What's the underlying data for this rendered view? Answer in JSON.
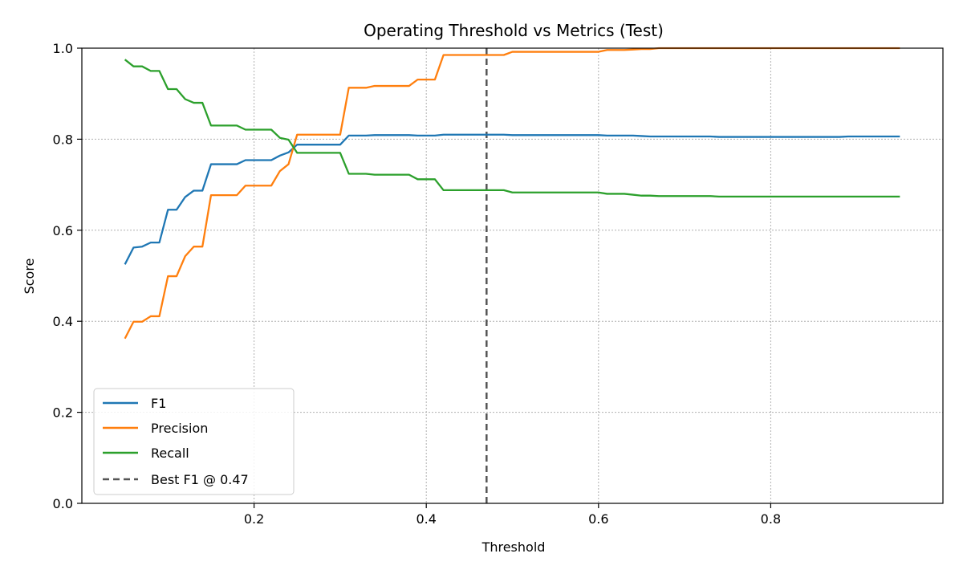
{
  "chart_data": {
    "type": "line",
    "title": "Operating Threshold vs Metrics (Test)",
    "xlabel": "Threshold",
    "ylabel": "Score",
    "xlim": [
      0.0,
      1.0
    ],
    "ylim": [
      0.0,
      1.0
    ],
    "xticks": [
      0.2,
      0.4,
      0.6,
      0.8
    ],
    "xtick_labels": [
      "0.2",
      "0.4",
      "0.6",
      "0.8"
    ],
    "yticks": [
      0.0,
      0.2,
      0.4,
      0.6,
      0.8,
      1.0
    ],
    "ytick_labels": [
      "0.0",
      "0.2",
      "0.4",
      "0.6",
      "0.8",
      "1.0"
    ],
    "grid": true,
    "legend_position": "lower-left",
    "x": [
      0.05,
      0.06,
      0.07,
      0.08,
      0.09,
      0.1,
      0.11,
      0.12,
      0.13,
      0.14,
      0.15,
      0.16,
      0.17,
      0.18,
      0.19,
      0.2,
      0.21,
      0.22,
      0.23,
      0.24,
      0.25,
      0.26,
      0.27,
      0.28,
      0.29,
      0.3,
      0.31,
      0.32,
      0.33,
      0.34,
      0.35,
      0.36,
      0.37,
      0.38,
      0.39,
      0.4,
      0.41,
      0.42,
      0.43,
      0.44,
      0.45,
      0.46,
      0.47,
      0.48,
      0.49,
      0.5,
      0.51,
      0.52,
      0.53,
      0.54,
      0.55,
      0.56,
      0.57,
      0.58,
      0.59,
      0.6,
      0.61,
      0.62,
      0.63,
      0.64,
      0.65,
      0.66,
      0.67,
      0.68,
      0.69,
      0.7,
      0.71,
      0.72,
      0.73,
      0.74,
      0.75,
      0.76,
      0.77,
      0.78,
      0.79,
      0.8,
      0.81,
      0.82,
      0.83,
      0.84,
      0.85,
      0.86,
      0.87,
      0.88,
      0.89,
      0.9,
      0.91,
      0.92,
      0.93,
      0.94,
      0.95
    ],
    "series": [
      {
        "name": "F1",
        "color": "#1f77b4",
        "style": "solid",
        "values": [
          0.525,
          0.562,
          0.564,
          0.573,
          0.573,
          0.645,
          0.645,
          0.673,
          0.687,
          0.687,
          0.745,
          0.745,
          0.745,
          0.745,
          0.754,
          0.754,
          0.754,
          0.754,
          0.764,
          0.771,
          0.788,
          0.788,
          0.788,
          0.788,
          0.788,
          0.788,
          0.808,
          0.808,
          0.808,
          0.809,
          0.809,
          0.809,
          0.809,
          0.809,
          0.808,
          0.808,
          0.808,
          0.81,
          0.81,
          0.81,
          0.81,
          0.81,
          0.81,
          0.81,
          0.81,
          0.809,
          0.809,
          0.809,
          0.809,
          0.809,
          0.809,
          0.809,
          0.809,
          0.809,
          0.809,
          0.809,
          0.808,
          0.808,
          0.808,
          0.808,
          0.807,
          0.806,
          0.806,
          0.806,
          0.806,
          0.806,
          0.806,
          0.806,
          0.806,
          0.805,
          0.805,
          0.805,
          0.805,
          0.805,
          0.805,
          0.805,
          0.805,
          0.805,
          0.805,
          0.805,
          0.805,
          0.805,
          0.805,
          0.805,
          0.806,
          0.806,
          0.806,
          0.806,
          0.806,
          0.806,
          0.806
        ]
      },
      {
        "name": "Precision",
        "color": "#ff7f0e",
        "style": "solid",
        "values": [
          0.362,
          0.399,
          0.399,
          0.411,
          0.411,
          0.499,
          0.499,
          0.543,
          0.564,
          0.564,
          0.677,
          0.677,
          0.677,
          0.677,
          0.698,
          0.698,
          0.698,
          0.698,
          0.73,
          0.745,
          0.81,
          0.81,
          0.81,
          0.81,
          0.81,
          0.81,
          0.913,
          0.913,
          0.913,
          0.917,
          0.917,
          0.917,
          0.917,
          0.917,
          0.931,
          0.931,
          0.931,
          0.985,
          0.985,
          0.985,
          0.985,
          0.985,
          0.985,
          0.985,
          0.985,
          0.992,
          0.992,
          0.992,
          0.992,
          0.992,
          0.992,
          0.992,
          0.992,
          0.992,
          0.992,
          0.992,
          0.996,
          0.996,
          0.996,
          0.997,
          0.998,
          0.998,
          1.0,
          1.0,
          1.0,
          1.0,
          1.0,
          1.0,
          1.0,
          1.0,
          1.0,
          1.0,
          1.0,
          1.0,
          1.0,
          1.0,
          1.0,
          1.0,
          1.0,
          1.0,
          1.0,
          1.0,
          1.0,
          1.0,
          1.0,
          1.0,
          1.0,
          1.0,
          1.0,
          1.0,
          1.0
        ]
      },
      {
        "name": "Recall",
        "color": "#2ca02c",
        "style": "solid",
        "values": [
          0.975,
          0.96,
          0.96,
          0.95,
          0.95,
          0.91,
          0.91,
          0.888,
          0.88,
          0.88,
          0.83,
          0.83,
          0.83,
          0.83,
          0.821,
          0.821,
          0.821,
          0.821,
          0.803,
          0.799,
          0.77,
          0.77,
          0.77,
          0.77,
          0.77,
          0.77,
          0.724,
          0.724,
          0.724,
          0.722,
          0.722,
          0.722,
          0.722,
          0.722,
          0.712,
          0.712,
          0.712,
          0.688,
          0.688,
          0.688,
          0.688,
          0.688,
          0.688,
          0.688,
          0.688,
          0.683,
          0.683,
          0.683,
          0.683,
          0.683,
          0.683,
          0.683,
          0.683,
          0.683,
          0.683,
          0.683,
          0.68,
          0.68,
          0.68,
          0.678,
          0.676,
          0.676,
          0.675,
          0.675,
          0.675,
          0.675,
          0.675,
          0.675,
          0.675,
          0.674,
          0.674,
          0.674,
          0.674,
          0.674,
          0.674,
          0.674,
          0.674,
          0.674,
          0.674,
          0.674,
          0.674,
          0.674,
          0.674,
          0.674,
          0.674,
          0.674,
          0.674,
          0.674,
          0.674,
          0.674,
          0.674
        ]
      }
    ],
    "vline": {
      "name": "Best F1 @ 0.47",
      "x": 0.47,
      "color": "#555555",
      "style": "dashed"
    }
  }
}
